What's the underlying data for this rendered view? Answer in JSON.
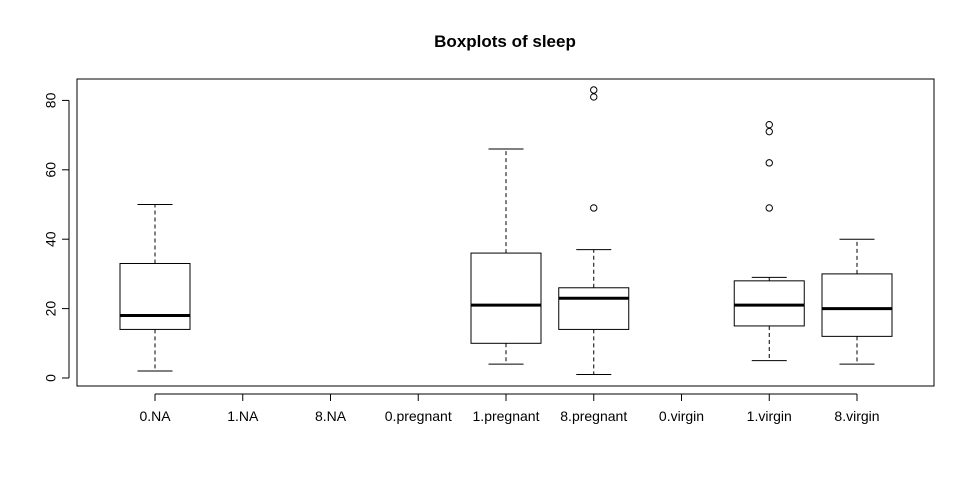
{
  "chart_data": {
    "type": "boxplot",
    "title": "Boxplots of sleep",
    "xlabel": "",
    "ylabel": "",
    "categories": [
      "0.NA",
      "1.NA",
      "8.NA",
      "0.pregnant",
      "1.pregnant",
      "8.pregnant",
      "0.virgin",
      "1.virgin",
      "8.virgin"
    ],
    "yticks": [
      0,
      20,
      40,
      60,
      80
    ],
    "ylim": [
      -2,
      86
    ],
    "grid": false,
    "boxes": [
      {
        "category": "0.NA",
        "min": 2,
        "q1": 14,
        "median": 18,
        "q3": 33,
        "max": 50,
        "outliers": []
      },
      {
        "category": "1.NA",
        "empty": true
      },
      {
        "category": "8.NA",
        "empty": true
      },
      {
        "category": "0.pregnant",
        "empty": true
      },
      {
        "category": "1.pregnant",
        "min": 4,
        "q1": 10,
        "median": 21,
        "q3": 36,
        "max": 66,
        "outliers": []
      },
      {
        "category": "8.pregnant",
        "min": 1,
        "q1": 14,
        "median": 23,
        "q3": 26,
        "max": 37,
        "outliers": [
          49,
          81,
          83
        ]
      },
      {
        "category": "0.virgin",
        "empty": true
      },
      {
        "category": "1.virgin",
        "min": 5,
        "q1": 15,
        "median": 21,
        "q3": 28,
        "max": 29,
        "outliers": [
          49,
          62,
          71,
          73
        ]
      },
      {
        "category": "8.virgin",
        "min": 4,
        "q1": 12,
        "median": 20,
        "q3": 30,
        "max": 40,
        "outliers": []
      }
    ]
  }
}
